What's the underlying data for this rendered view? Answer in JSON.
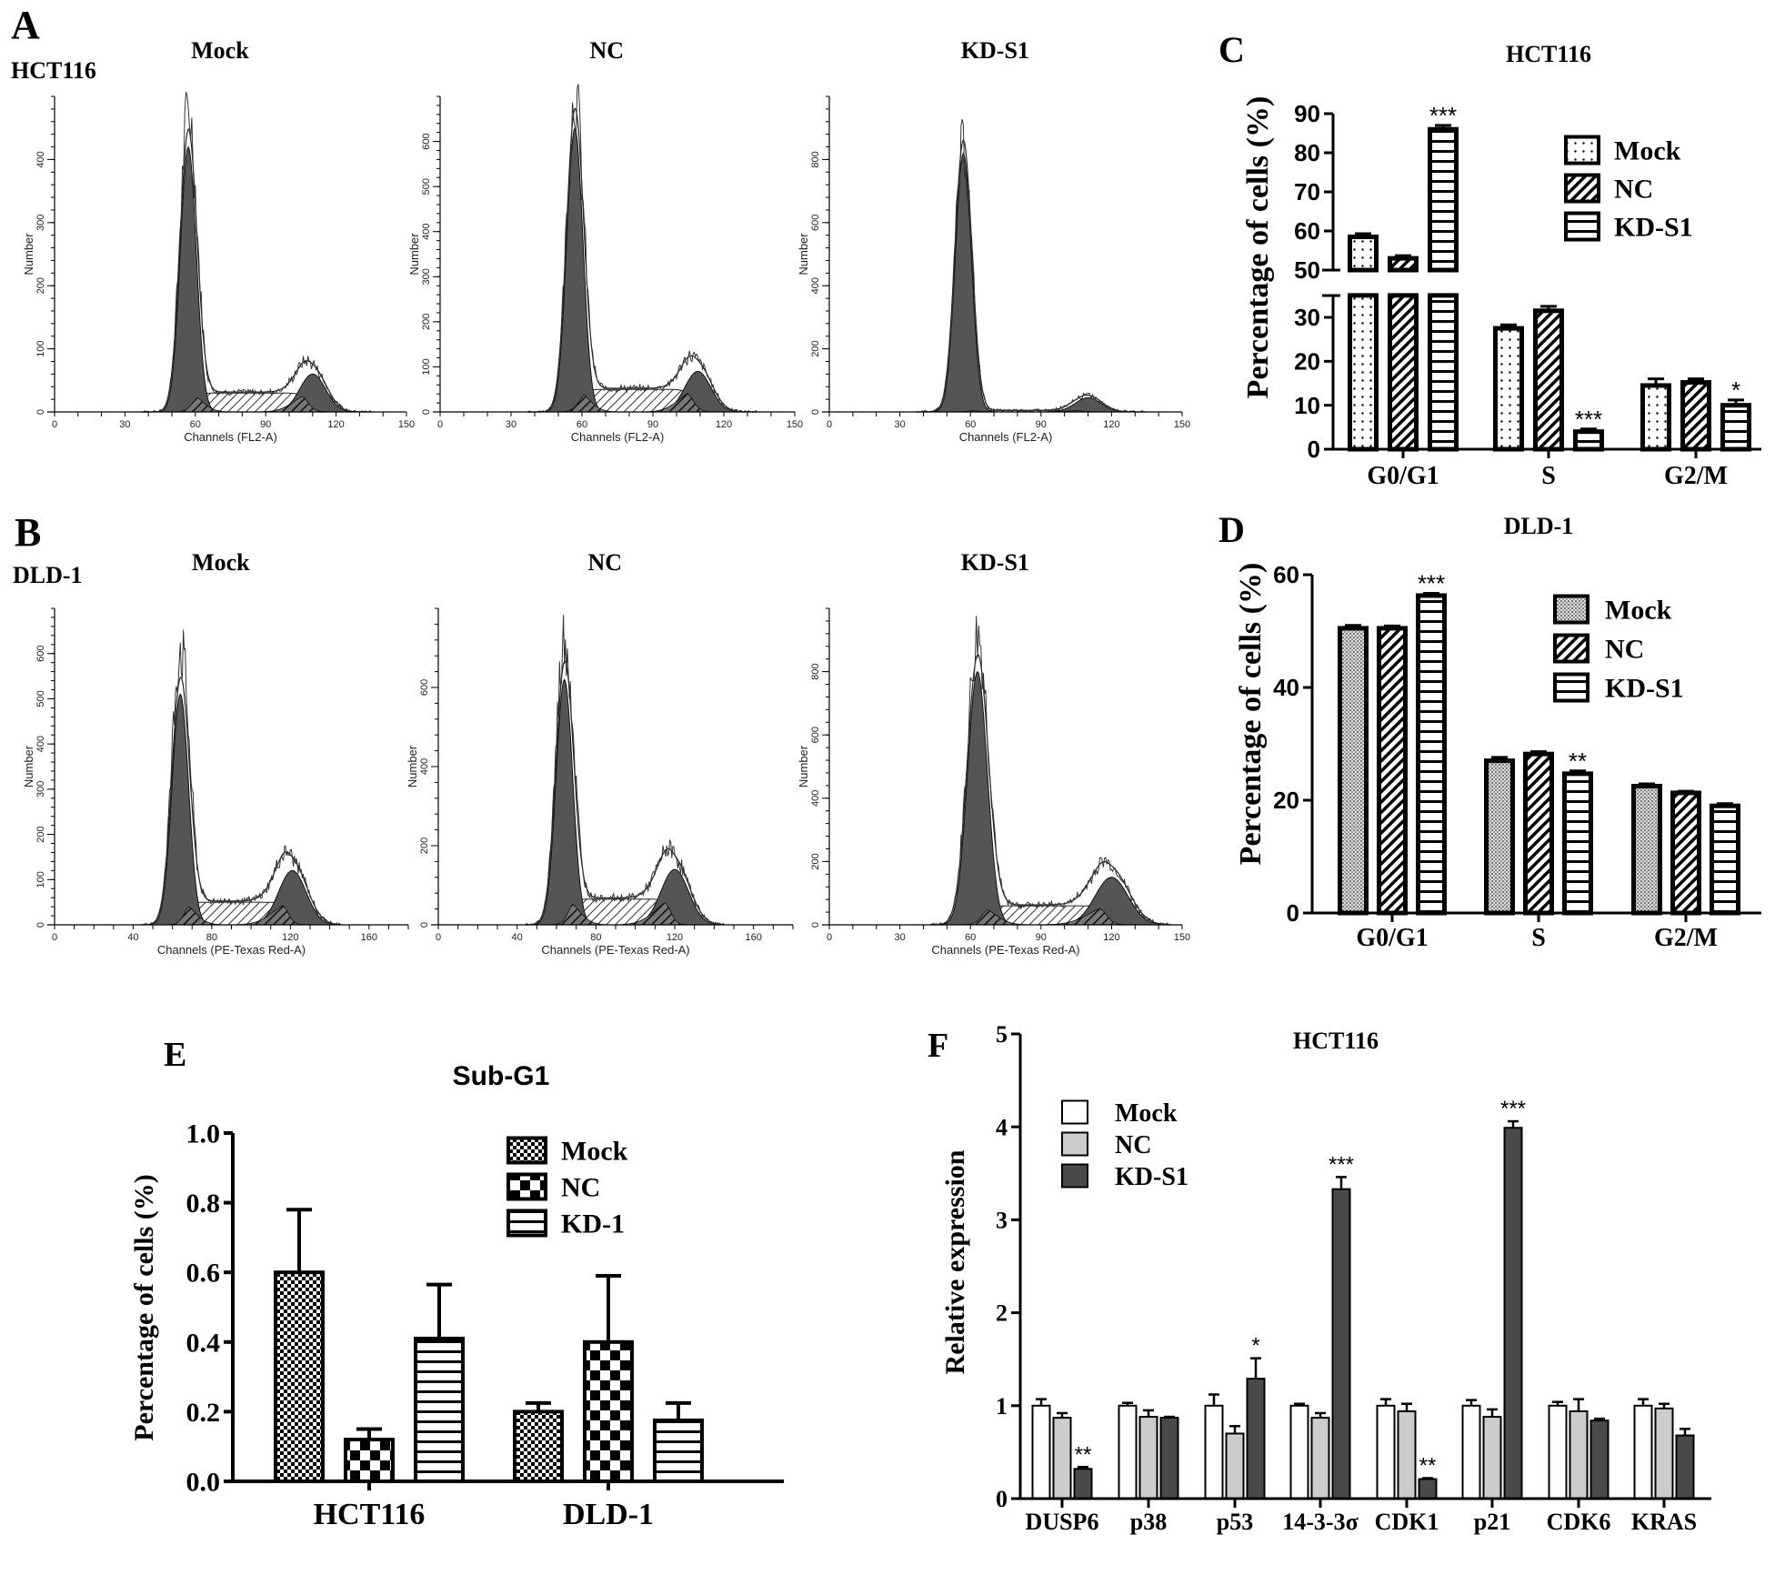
{
  "panel_letters": {
    "A": "A",
    "B": "B",
    "C": "C",
    "D": "D",
    "E": "E",
    "F": "F"
  },
  "row_labels": {
    "A": "HCT116",
    "B": "DLD-1"
  },
  "chart_data": [
    {
      "type": "histogram",
      "panel": "A",
      "title": "Mock",
      "xlabel": "Channels (FL2-A)",
      "ylabel": "Number",
      "xlim": [
        0,
        150
      ],
      "xticks": [
        0,
        30,
        60,
        90,
        120,
        150
      ],
      "ylim": [
        0,
        500
      ],
      "yticks": [
        0,
        100,
        200,
        300,
        400
      ],
      "g1": {
        "channel": 57,
        "count": 420
      },
      "g2": {
        "channel": 110,
        "count": 60
      },
      "s_phase_level": 30,
      "raw_peak": 470
    },
    {
      "type": "histogram",
      "panel": "A",
      "title": "NC",
      "xlabel": "Channels (FL2-A)",
      "ylabel": "Number",
      "xlim": [
        0,
        150
      ],
      "xticks": [
        0,
        30,
        60,
        90,
        120,
        150
      ],
      "ylim": [
        0,
        700
      ],
      "yticks": [
        0,
        100,
        200,
        300,
        400,
        500,
        600
      ],
      "g1": {
        "channel": 57,
        "count": 630
      },
      "g2": {
        "channel": 109,
        "count": 90
      },
      "s_phase_level": 50,
      "raw_peak": 690
    },
    {
      "type": "histogram",
      "panel": "A",
      "title": "KD-S1",
      "xlabel": "Channels (FL2-A)",
      "ylabel": "Number",
      "xlim": [
        0,
        150
      ],
      "xticks": [
        0,
        30,
        60,
        90,
        120,
        150
      ],
      "ylim": [
        0,
        1000
      ],
      "yticks": [
        0,
        200,
        400,
        600,
        800
      ],
      "g1": {
        "channel": 57,
        "count": 820
      },
      "g2": {
        "channel": 110,
        "count": 45
      },
      "s_phase_level": 5,
      "raw_peak": 840
    },
    {
      "type": "histogram",
      "panel": "B",
      "title": "Mock",
      "xlabel": "Channels (PE-Texas Red-A)",
      "ylabel": "Number",
      "xlim": [
        0,
        180
      ],
      "xticks": [
        0,
        40,
        80,
        120,
        160
      ],
      "ylim": [
        0,
        700
      ],
      "yticks": [
        0,
        100,
        200,
        300,
        400,
        500,
        600
      ],
      "g1": {
        "channel": 64,
        "count": 510
      },
      "g2": {
        "channel": 121,
        "count": 120
      },
      "s_phase_level": 50,
      "raw_peak": 600
    },
    {
      "type": "histogram",
      "panel": "B",
      "title": "NC",
      "xlabel": "Channels (PE-Texas Red-A)",
      "ylabel": "Number",
      "xlim": [
        0,
        180
      ],
      "xticks": [
        0,
        40,
        80,
        120,
        160
      ],
      "ylim": [
        0,
        800
      ],
      "yticks": [
        0,
        200,
        400,
        600
      ],
      "g1": {
        "channel": 64,
        "count": 620
      },
      "g2": {
        "channel": 120,
        "count": 140
      },
      "s_phase_level": 65,
      "raw_peak": 710
    },
    {
      "type": "histogram",
      "panel": "B",
      "title": "KD-S1",
      "xlabel": "Channels (PE-Texas Red-A)",
      "ylabel": "Number",
      "xlim": [
        0,
        150
      ],
      "xticks": [
        0,
        30,
        60,
        90,
        120,
        150
      ],
      "ylim": [
        0,
        1000
      ],
      "yticks": [
        0,
        200,
        400,
        600,
        800
      ],
      "g1": {
        "channel": 63,
        "count": 800
      },
      "g2": {
        "channel": 120,
        "count": 150
      },
      "s_phase_level": 60,
      "raw_peak": 890
    },
    {
      "type": "bar",
      "panel": "C",
      "title": "HCT116",
      "xlabel": "",
      "ylabel": "Percentage of cells (%)",
      "categories": [
        "G0/G1",
        "S",
        "G2/M"
      ],
      "axis_break": [
        35,
        50
      ],
      "ylim_lower": [
        0,
        35
      ],
      "ylim_upper": [
        50,
        90
      ],
      "yticks_lower": [
        "0",
        "10",
        "20",
        "30"
      ],
      "yticks_upper": [
        "50",
        "60",
        "70",
        "80",
        "90"
      ],
      "series": [
        {
          "name": "Mock",
          "pattern": "dots",
          "values": [
            58.5,
            27.5,
            14.5
          ],
          "errors": [
            0.8,
            0.8,
            1.5
          ]
        },
        {
          "name": "NC",
          "pattern": "diagonal",
          "values": [
            53,
            31.5,
            15.2
          ],
          "errors": [
            0.7,
            1.0,
            0.8
          ]
        },
        {
          "name": "KD-S1",
          "pattern": "horizontal",
          "values": [
            86,
            4,
            10
          ],
          "errors": [
            1.0,
            0.6,
            1.2
          ]
        }
      ],
      "annotations": [
        {
          "category": 0,
          "series": 2,
          "text": "***"
        },
        {
          "category": 1,
          "series": 2,
          "text": "***"
        },
        {
          "category": 2,
          "series": 2,
          "text": "*"
        }
      ],
      "legend": "top-right"
    },
    {
      "type": "bar",
      "panel": "D",
      "title": "DLD-1",
      "xlabel": "",
      "ylabel": "Percentage of cells (%)",
      "categories": [
        "G0/G1",
        "S",
        "G2/M"
      ],
      "ylim": [
        0,
        60
      ],
      "yticks": [
        "0",
        "20",
        "40",
        "60"
      ],
      "series": [
        {
          "name": "Mock",
          "pattern": "fine-dots",
          "values": [
            50.5,
            27,
            22.5
          ],
          "errors": [
            0.5,
            0.6,
            0.4
          ]
        },
        {
          "name": "NC",
          "pattern": "diagonal",
          "values": [
            50.5,
            28.2,
            21.3
          ],
          "errors": [
            0.4,
            0.4,
            0.3
          ]
        },
        {
          "name": "KD-S1",
          "pattern": "horizontal",
          "values": [
            56.3,
            24.7,
            19
          ],
          "errors": [
            0.4,
            0.5,
            0.4
          ]
        }
      ],
      "annotations": [
        {
          "category": 0,
          "series": 2,
          "text": "***"
        },
        {
          "category": 1,
          "series": 2,
          "text": "**"
        }
      ],
      "legend": "top-right"
    },
    {
      "type": "bar",
      "panel": "E",
      "title": "Sub-G1",
      "xlabel": "",
      "ylabel": "Percentage of cells (%)",
      "categories": [
        "HCT116",
        "DLD-1"
      ],
      "ylim": [
        0,
        1.0
      ],
      "yticks": [
        "0.0",
        "0.2",
        "0.4",
        "0.6",
        "0.8",
        "1.0"
      ],
      "series": [
        {
          "name": "Mock",
          "pattern": "fine-checker",
          "values": [
            0.6,
            0.2
          ],
          "errors": [
            0.18,
            0.025
          ]
        },
        {
          "name": "NC",
          "pattern": "checker",
          "values": [
            0.12,
            0.4
          ],
          "errors": [
            0.03,
            0.19
          ]
        },
        {
          "name": "KD-1",
          "pattern": "horizontal",
          "values": [
            0.41,
            0.175
          ],
          "errors": [
            0.155,
            0.05
          ]
        }
      ],
      "annotations": [],
      "legend": "top-right"
    },
    {
      "type": "bar",
      "panel": "F",
      "title": "HCT116",
      "xlabel": "",
      "ylabel": "Relative expression",
      "categories": [
        "DUSP6",
        "p38",
        "p53",
        "14-3-3σ",
        "CDK1",
        "p21",
        "CDK6",
        "KRAS"
      ],
      "ylim": [
        0,
        5
      ],
      "yticks": [
        "0",
        "1",
        "2",
        "3",
        "4",
        "5"
      ],
      "series": [
        {
          "name": "Mock",
          "color": "#ffffff",
          "values": [
            1,
            1,
            1,
            1,
            1,
            1,
            1,
            1
          ],
          "errors": [
            0.07,
            0.03,
            0.12,
            0.02,
            0.07,
            0.06,
            0.04,
            0.07
          ]
        },
        {
          "name": "NC",
          "color": "#cccccc",
          "values": [
            0.87,
            0.88,
            0.7,
            0.87,
            0.94,
            0.88,
            0.94,
            0.97
          ],
          "errors": [
            0.05,
            0.07,
            0.08,
            0.05,
            0.08,
            0.08,
            0.13,
            0.05
          ]
        },
        {
          "name": "KD-S1",
          "color": "#4a4a4a",
          "values": [
            0.32,
            0.87,
            1.29,
            3.33,
            0.21,
            3.99,
            0.84,
            0.68
          ],
          "errors": [
            0.02,
            0.01,
            0.22,
            0.13,
            0.01,
            0.07,
            0.02,
            0.07
          ]
        }
      ],
      "annotations": [
        {
          "category": 0,
          "series": 2,
          "text": "**"
        },
        {
          "category": 2,
          "series": 2,
          "text": "*"
        },
        {
          "category": 3,
          "series": 2,
          "text": "***"
        },
        {
          "category": 4,
          "series": 2,
          "text": "**"
        },
        {
          "category": 5,
          "series": 2,
          "text": "***"
        }
      ],
      "legend": "top-left"
    }
  ]
}
